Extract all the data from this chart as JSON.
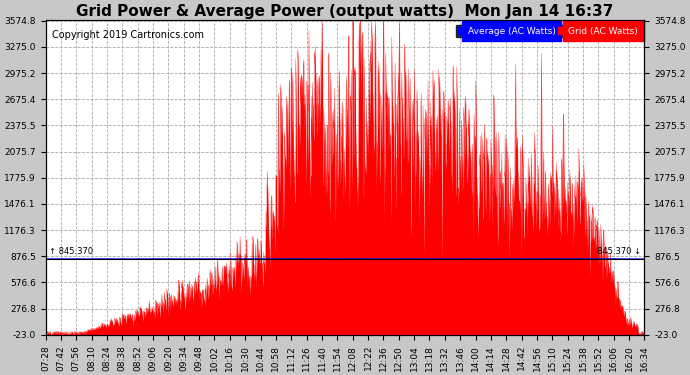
{
  "title": "Grid Power & Average Power (output watts)  Mon Jan 14 16:37",
  "copyright": "Copyright 2019 Cartronics.com",
  "legend_labels": [
    "Average (AC Watts)",
    "Grid (AC Watts)"
  ],
  "legend_facecolors": [
    "blue",
    "red"
  ],
  "y_min": -23.0,
  "y_max": 3574.8,
  "yticks": [
    3574.8,
    3275.0,
    2975.2,
    2675.4,
    2375.5,
    2075.7,
    1775.9,
    1476.1,
    1176.3,
    876.5,
    576.6,
    276.8,
    -23.0
  ],
  "hline_value": 845.37,
  "hline_label": "845.370",
  "fig_bg_color": "#c8c8c8",
  "plot_bg_color": "#ffffff",
  "grid_color": "#aaaaaa",
  "fill_color": "red",
  "avg_line_color": "blue",
  "title_fontsize": 11,
  "copyright_fontsize": 7,
  "tick_label_fontsize": 6.5,
  "start_hhmm": "07:28",
  "end_hhmm": "16:34",
  "x_tick_step_minutes": 14
}
